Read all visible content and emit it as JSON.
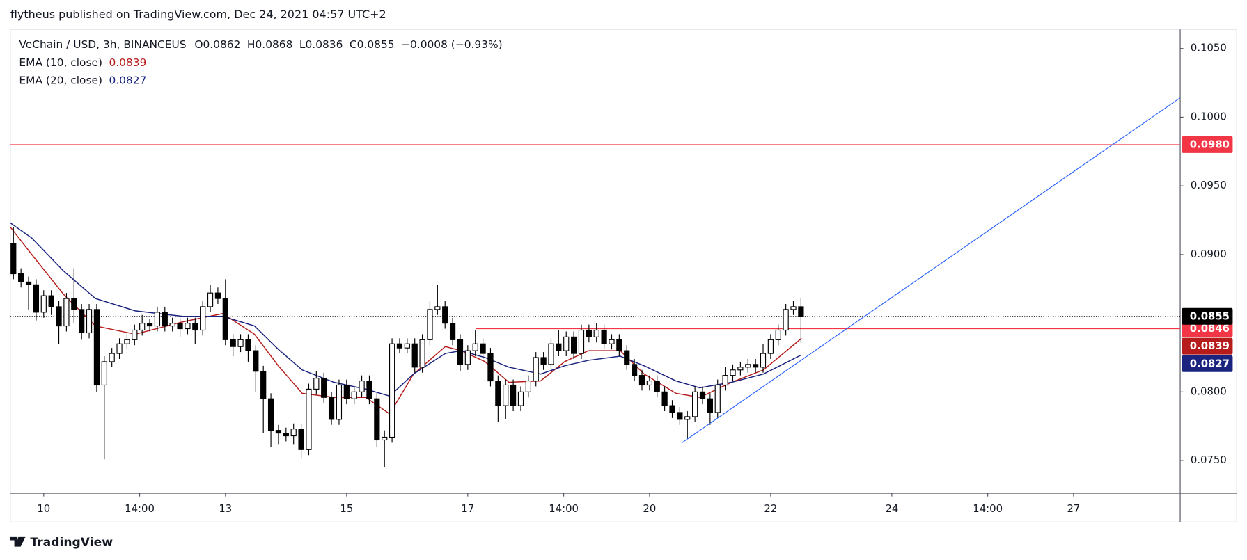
{
  "header": {
    "publisher": "flytheus published on TradingView.com, Dec 24, 2021 04:57 UTC+2"
  },
  "chart_data": {
    "type": "candlestick",
    "symbol": "VeChain / USD, 3h, BINANCEUS",
    "ohlc_legend": [
      {
        "label": "O",
        "value": "0.0862"
      },
      {
        "label": "H",
        "value": "0.0868"
      },
      {
        "label": "L",
        "value": "0.0836"
      },
      {
        "label": "C",
        "value": "0.0855"
      }
    ],
    "change": "−0.0008 (−0.93%)",
    "up_color": "#ffffff",
    "down_color": "#000000",
    "x": [
      9.5,
      9.625,
      9.75,
      9.875,
      10,
      10.125,
      10.25,
      10.375,
      10.5,
      10.625,
      10.75,
      10.875,
      11,
      11.125,
      11.25,
      11.375,
      11.5,
      11.625,
      11.75,
      11.875,
      12,
      12.125,
      12.25,
      12.375,
      12.5,
      12.625,
      12.75,
      12.875,
      13,
      13.125,
      13.25,
      13.375,
      13.5,
      13.625,
      13.75,
      13.875,
      14,
      14.125,
      14.25,
      14.375,
      14.5,
      14.625,
      14.75,
      14.875,
      15,
      15.125,
      15.25,
      15.375,
      15.5,
      15.625,
      15.75,
      15.875,
      16,
      16.125,
      16.25,
      16.375,
      16.5,
      16.625,
      16.75,
      16.875,
      17,
      17.125,
      17.25,
      17.375,
      17.5,
      17.625,
      17.75,
      17.875,
      18,
      18.125,
      18.25,
      18.375,
      18.5,
      18.625,
      18.75,
      18.875,
      19,
      19.125,
      19.25,
      19.375,
      19.5,
      19.625,
      19.75,
      19.875,
      20,
      20.125,
      20.25,
      20.375,
      20.5,
      20.625,
      20.75,
      20.875,
      21,
      21.125,
      21.25,
      21.375,
      21.5,
      21.625,
      21.75,
      21.875,
      22,
      22.125,
      22.25,
      22.375,
      22.5
    ],
    "open": [
      0.0908,
      0.0886,
      0.088,
      0.0878,
      0.0858,
      0.087,
      0.0862,
      0.0848,
      0.0868,
      0.086,
      0.0843,
      0.086,
      0.0805,
      0.0822,
      0.0828,
      0.0835,
      0.0838,
      0.0845,
      0.085,
      0.0848,
      0.0858,
      0.0848,
      0.085,
      0.0846,
      0.085,
      0.0845,
      0.0862,
      0.0872,
      0.0868,
      0.0838,
      0.0833,
      0.0838,
      0.083,
      0.0815,
      0.0795,
      0.0772,
      0.077,
      0.0768,
      0.0773,
      0.0758,
      0.0802,
      0.081,
      0.0796,
      0.078,
      0.0805,
      0.0795,
      0.08,
      0.0808,
      0.0795,
      0.0765,
      0.0767,
      0.0835,
      0.0832,
      0.0835,
      0.0818,
      0.0838,
      0.086,
      0.0862,
      0.085,
      0.0838,
      0.082,
      0.083,
      0.0835,
      0.0828,
      0.0808,
      0.079,
      0.0805,
      0.079,
      0.08,
      0.0808,
      0.0825,
      0.082,
      0.0835,
      0.083,
      0.084,
      0.0828,
      0.0845,
      0.084,
      0.0845,
      0.0835,
      0.0838,
      0.083,
      0.082,
      0.0812,
      0.0805,
      0.0808,
      0.08,
      0.079,
      0.0785,
      0.078,
      0.0782,
      0.08,
      0.0795,
      0.0785,
      0.0805,
      0.0812,
      0.0816,
      0.0818,
      0.082,
      0.0818,
      0.0828,
      0.0838,
      0.0845,
      0.086,
      0.0862
    ],
    "high": [
      0.092,
      0.089,
      0.0884,
      0.0882,
      0.0874,
      0.0874,
      0.0866,
      0.0872,
      0.089,
      0.0864,
      0.0864,
      0.0864,
      0.0826,
      0.0832,
      0.0839,
      0.0842,
      0.0849,
      0.0856,
      0.0853,
      0.0862,
      0.0862,
      0.0854,
      0.0854,
      0.0854,
      0.0854,
      0.0866,
      0.0878,
      0.0876,
      0.0882,
      0.0842,
      0.0842,
      0.0842,
      0.0834,
      0.0819,
      0.0799,
      0.0776,
      0.0774,
      0.0777,
      0.0777,
      0.0806,
      0.0815,
      0.0814,
      0.08,
      0.0809,
      0.0809,
      0.0804,
      0.0812,
      0.0812,
      0.0799,
      0.0772,
      0.0839,
      0.0839,
      0.0839,
      0.0839,
      0.0842,
      0.0866,
      0.0878,
      0.0866,
      0.0854,
      0.0842,
      0.0834,
      0.0845,
      0.0839,
      0.0832,
      0.0812,
      0.0809,
      0.0809,
      0.0804,
      0.0812,
      0.0829,
      0.0829,
      0.0839,
      0.0845,
      0.0844,
      0.0844,
      0.0849,
      0.0849,
      0.085,
      0.0849,
      0.0842,
      0.0842,
      0.0834,
      0.0824,
      0.0816,
      0.0812,
      0.0812,
      0.0804,
      0.0794,
      0.0789,
      0.0786,
      0.0804,
      0.0804,
      0.0799,
      0.0809,
      0.0818,
      0.082,
      0.0822,
      0.0824,
      0.0824,
      0.0835,
      0.0842,
      0.0849,
      0.0864,
      0.0866,
      0.0868
    ],
    "low": [
      0.0882,
      0.0876,
      0.086,
      0.0852,
      0.0854,
      0.0856,
      0.0835,
      0.0844,
      0.085,
      0.0838,
      0.0839,
      0.08,
      0.0751,
      0.0818,
      0.0824,
      0.0831,
      0.0834,
      0.0841,
      0.0844,
      0.0844,
      0.0844,
      0.0844,
      0.084,
      0.0842,
      0.0835,
      0.0841,
      0.0858,
      0.0864,
      0.0834,
      0.0826,
      0.0829,
      0.0822,
      0.08,
      0.077,
      0.076,
      0.0762,
      0.0764,
      0.0762,
      0.0752,
      0.0754,
      0.0798,
      0.0792,
      0.0776,
      0.0776,
      0.0791,
      0.0791,
      0.0796,
      0.0791,
      0.076,
      0.0745,
      0.0763,
      0.0828,
      0.0828,
      0.0814,
      0.0814,
      0.0834,
      0.0856,
      0.0846,
      0.0834,
      0.0815,
      0.0816,
      0.0826,
      0.0824,
      0.0804,
      0.0778,
      0.078,
      0.0786,
      0.0786,
      0.0796,
      0.0804,
      0.0816,
      0.0816,
      0.0826,
      0.0826,
      0.0824,
      0.0824,
      0.0836,
      0.0836,
      0.0831,
      0.0831,
      0.0826,
      0.0816,
      0.0808,
      0.0801,
      0.0801,
      0.0796,
      0.0786,
      0.0781,
      0.0776,
      0.0766,
      0.0778,
      0.0791,
      0.0776,
      0.0781,
      0.0801,
      0.0808,
      0.0812,
      0.0814,
      0.0814,
      0.0814,
      0.0824,
      0.0834,
      0.0841,
      0.0856,
      0.0836
    ],
    "close": [
      0.0886,
      0.088,
      0.0878,
      0.0858,
      0.087,
      0.0862,
      0.0848,
      0.0868,
      0.086,
      0.0843,
      0.086,
      0.0805,
      0.0822,
      0.0828,
      0.0835,
      0.0838,
      0.0845,
      0.085,
      0.0848,
      0.0858,
      0.0848,
      0.085,
      0.0846,
      0.085,
      0.0845,
      0.0862,
      0.0872,
      0.0868,
      0.0838,
      0.0833,
      0.0838,
      0.083,
      0.0815,
      0.0795,
      0.0772,
      0.077,
      0.0768,
      0.0773,
      0.0758,
      0.0802,
      0.081,
      0.0796,
      0.078,
      0.0805,
      0.0795,
      0.08,
      0.0808,
      0.0795,
      0.0765,
      0.0767,
      0.0835,
      0.0832,
      0.0835,
      0.0818,
      0.0838,
      0.086,
      0.0862,
      0.085,
      0.0838,
      0.082,
      0.083,
      0.0835,
      0.0828,
      0.0808,
      0.079,
      0.0805,
      0.079,
      0.08,
      0.0808,
      0.0825,
      0.082,
      0.0835,
      0.083,
      0.084,
      0.0828,
      0.0845,
      0.084,
      0.0845,
      0.0835,
      0.0838,
      0.083,
      0.082,
      0.0812,
      0.0805,
      0.0808,
      0.08,
      0.079,
      0.0785,
      0.078,
      0.0782,
      0.08,
      0.0795,
      0.0785,
      0.0805,
      0.0812,
      0.0816,
      0.0818,
      0.082,
      0.0818,
      0.0828,
      0.0838,
      0.0845,
      0.086,
      0.0862,
      0.0855
    ],
    "indicators": [
      {
        "name": "EMA (10, close)",
        "color": "#b71c1c",
        "tag_color": "#b71c1c",
        "value_label": "0.0839",
        "x": [
          9.449,
          9.803,
          10.328,
          10.853,
          11.51,
          12.297,
          12.954,
          13.479,
          13.872,
          14.266,
          14.791,
          15.316,
          15.71,
          16.104,
          16.629,
          16.892,
          17.285,
          17.679,
          18.204,
          18.598,
          18.992,
          19.517,
          19.911,
          20.436,
          20.83,
          21.355,
          21.88,
          22.51
        ],
        "values": [
          0.092,
          0.09,
          0.0871,
          0.0848,
          0.0842,
          0.0851,
          0.0857,
          0.0842,
          0.0819,
          0.0799,
          0.0796,
          0.0796,
          0.0784,
          0.0813,
          0.0833,
          0.083,
          0.0822,
          0.0807,
          0.0808,
          0.0822,
          0.083,
          0.083,
          0.0813,
          0.0799,
          0.0796,
          0.0807,
          0.0816,
          0.0839
        ]
      },
      {
        "name": "EMA (20, close)",
        "color": "#1a237e",
        "tag_color": "#1a237e",
        "value_label": "0.0827",
        "x": [
          9.449,
          9.803,
          10.328,
          10.853,
          11.51,
          12.297,
          12.954,
          13.479,
          13.872,
          14.266,
          14.791,
          15.316,
          15.71,
          16.104,
          16.629,
          16.892,
          17.285,
          17.679,
          18.204,
          18.598,
          18.992,
          19.517,
          19.911,
          20.436,
          20.83,
          21.355,
          21.88,
          22.51
        ],
        "values": [
          0.0923,
          0.0912,
          0.0888,
          0.0868,
          0.0859,
          0.0855,
          0.0855,
          0.0848,
          0.0831,
          0.0816,
          0.0807,
          0.0802,
          0.0797,
          0.0813,
          0.0828,
          0.083,
          0.0825,
          0.0818,
          0.0813,
          0.0819,
          0.0823,
          0.0826,
          0.0819,
          0.0808,
          0.0803,
          0.0807,
          0.0813,
          0.0827
        ]
      }
    ],
    "levels": [
      {
        "value": 0.098,
        "label": "0.0980",
        "color": "#f23645",
        "from": 9.449
      },
      {
        "value": 0.0846,
        "label": "0.0846",
        "color": "#f23645",
        "from": 17.13
      }
    ],
    "last_price": {
      "value": 0.0855,
      "label": "0.0855",
      "color": "#000000"
    },
    "trendline": {
      "x": [
        20.53,
        28.76
      ],
      "values": [
        0.07628,
        0.10141
      ],
      "color": "#2962ff"
    },
    "xlim": [
      9.449,
      28.76
    ],
    "ylim": [
      0.07262,
      0.10639
    ],
    "xticks": [
      10,
      {
        "value": 11.5833,
        "label": "14:00"
      },
      13,
      15,
      17,
      {
        "value": 18.5833,
        "label": "14:00"
      },
      20,
      22,
      24,
      {
        "value": 25.5833,
        "label": "14:00"
      },
      27
    ],
    "yticks": [
      {
        "value": 0.105,
        "label": "0.1050"
      },
      {
        "value": 0.1,
        "label": "0.1000"
      },
      {
        "value": 0.095,
        "label": "0.0950"
      },
      {
        "value": 0.09,
        "label": "0.0900"
      },
      {
        "value": 0.08,
        "label": "0.0800"
      },
      {
        "value": 0.075,
        "label": "0.0750"
      }
    ]
  },
  "footer": {
    "brand": "TradingView"
  }
}
